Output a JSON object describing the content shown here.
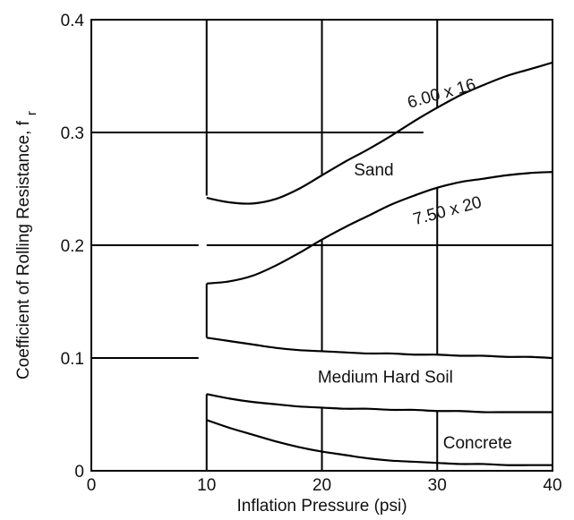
{
  "chart_data": {
    "type": "line",
    "title": "",
    "xlabel": "Inflation Pressure (psi)",
    "ylabel": "Coefficient of Rolling Resistance, f",
    "ylabel_subscript": "r",
    "xlim": [
      0,
      40
    ],
    "ylim": [
      0,
      0.4
    ],
    "x_ticks": [
      "0",
      "10",
      "20",
      "30",
      "40"
    ],
    "y_ticks": [
      "0",
      "0.1",
      "0.2",
      "0.3",
      "0.4"
    ],
    "grid": true,
    "series": [
      {
        "name": "6.00 x 16",
        "x": [
          10,
          12,
          14,
          16,
          18,
          20,
          22,
          24,
          26,
          28,
          30,
          32,
          34,
          36,
          38,
          40
        ],
        "y": [
          0.242,
          0.238,
          0.237,
          0.241,
          0.25,
          0.262,
          0.274,
          0.285,
          0.297,
          0.31,
          0.322,
          0.333,
          0.342,
          0.35,
          0.356,
          0.362
        ]
      },
      {
        "name": "7.50 x 20",
        "x": [
          10,
          12,
          14,
          16,
          18,
          20,
          22,
          24,
          26,
          28,
          30,
          32,
          34,
          36,
          38,
          40
        ],
        "y": [
          0.166,
          0.168,
          0.173,
          0.182,
          0.193,
          0.205,
          0.216,
          0.226,
          0.236,
          0.244,
          0.251,
          0.256,
          0.259,
          0.262,
          0.264,
          0.265
        ]
      },
      {
        "name": "",
        "x": [
          10,
          12,
          14,
          16,
          18,
          20,
          22,
          24,
          26,
          28,
          30,
          32,
          34,
          36,
          38,
          40
        ],
        "y": [
          0.118,
          0.115,
          0.112,
          0.109,
          0.107,
          0.106,
          0.105,
          0.104,
          0.104,
          0.103,
          0.103,
          0.102,
          0.102,
          0.101,
          0.101,
          0.1
        ]
      },
      {
        "name": "",
        "x": [
          10,
          12,
          14,
          16,
          18,
          20,
          22,
          24,
          26,
          28,
          30,
          32,
          34,
          36,
          38,
          40
        ],
        "y": [
          0.068,
          0.064,
          0.061,
          0.059,
          0.057,
          0.056,
          0.055,
          0.055,
          0.054,
          0.054,
          0.053,
          0.053,
          0.052,
          0.052,
          0.052,
          0.052
        ]
      },
      {
        "name": "",
        "x": [
          10,
          12,
          14,
          16,
          18,
          20,
          22,
          24,
          26,
          28,
          30,
          32,
          34,
          36,
          38,
          40
        ],
        "y": [
          0.045,
          0.038,
          0.032,
          0.026,
          0.021,
          0.017,
          0.014,
          0.011,
          0.009,
          0.008,
          0.007,
          0.006,
          0.006,
          0.005,
          0.005,
          0.005
        ]
      }
    ],
    "annotations": [
      {
        "text": "6.00 x 16",
        "x": 30.5,
        "y": 0.33,
        "rotate": -16
      },
      {
        "text": "Sand",
        "x": 24.5,
        "y": 0.262,
        "rotate": 0
      },
      {
        "text": "7.50 x 20",
        "x": 31.0,
        "y": 0.226,
        "rotate": -15
      },
      {
        "text": "Medium Hard Soil",
        "x": 25.5,
        "y": 0.078,
        "rotate": 0
      },
      {
        "text": "Concrete",
        "x": 33.5,
        "y": 0.02,
        "rotate": 0
      }
    ]
  }
}
